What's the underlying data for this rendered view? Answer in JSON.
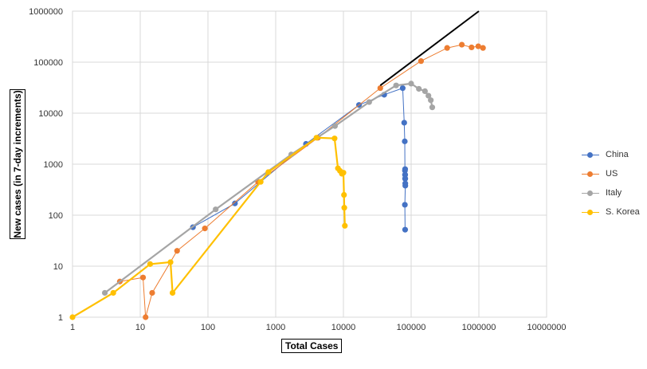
{
  "chart_data": {
    "type": "line",
    "xlabel": "Total Cases",
    "ylabel": "New cases (in 7-day increments)",
    "xscale": "log",
    "yscale": "log",
    "xlim": [
      1,
      10000000
    ],
    "ylim": [
      1,
      1000000
    ],
    "x_tick_labels": [
      "1",
      "10",
      "100",
      "1000",
      "10000",
      "100000",
      "1000000",
      "10000000"
    ],
    "y_tick_labels": [
      "1",
      "10",
      "100",
      "1000",
      "10000",
      "100000",
      "1000000"
    ],
    "grid": "major",
    "legend_position": "right",
    "series": [
      {
        "name": "China",
        "color": "#4472C4",
        "points": [
          [
            60,
            58
          ],
          [
            250,
            170
          ],
          [
            2800,
            2500
          ],
          [
            17000,
            14500
          ],
          [
            40000,
            23000
          ],
          [
            75000,
            31000
          ],
          [
            79000,
            6500
          ],
          [
            80500,
            2800
          ],
          [
            81000,
            750
          ],
          [
            81200,
            620
          ],
          [
            81400,
            520
          ],
          [
            81500,
            800
          ],
          [
            81600,
            620
          ],
          [
            81800,
            520
          ],
          [
            81900,
            420
          ],
          [
            82000,
            380
          ],
          [
            80800,
            160
          ],
          [
            81500,
            52
          ]
        ]
      },
      {
        "name": "US",
        "color": "#ED7D31",
        "points": [
          [
            5,
            5
          ],
          [
            11,
            6
          ],
          [
            12,
            1
          ],
          [
            15,
            3
          ],
          [
            35,
            20
          ],
          [
            90,
            55
          ],
          [
            550,
            450
          ],
          [
            4200,
            3300
          ],
          [
            35000,
            31000
          ],
          [
            140000,
            105000
          ],
          [
            340000,
            190000
          ],
          [
            560000,
            220000
          ],
          [
            780000,
            195000
          ],
          [
            980000,
            205000
          ],
          [
            1150000,
            190000
          ]
        ]
      },
      {
        "name": "Italy",
        "color": "#A5A5A5",
        "points": [
          [
            3,
            3
          ],
          [
            130,
            130
          ],
          [
            1700,
            1550
          ],
          [
            7500,
            5600
          ],
          [
            24000,
            16500
          ],
          [
            60000,
            35000
          ],
          [
            100000,
            38000
          ],
          [
            130000,
            30000
          ],
          [
            160000,
            27000
          ],
          [
            180000,
            22000
          ],
          [
            195000,
            18000
          ],
          [
            205000,
            13000
          ]
        ]
      },
      {
        "name": "S. Korea",
        "color": "#FFC000",
        "points": [
          [
            1,
            1
          ],
          [
            4,
            3
          ],
          [
            14,
            11
          ],
          [
            28,
            12
          ],
          [
            30,
            3
          ],
          [
            600,
            450
          ],
          [
            780,
            700
          ],
          [
            4000,
            3300
          ],
          [
            7400,
            3200
          ],
          [
            8300,
            830
          ],
          [
            8900,
            740
          ],
          [
            9500,
            650
          ],
          [
            10000,
            680
          ],
          [
            10200,
            250
          ],
          [
            10300,
            140
          ],
          [
            10500,
            62
          ]
        ]
      }
    ],
    "reference_line": {
      "color": "#000000",
      "points": [
        [
          35000,
          35000
        ],
        [
          1000000,
          1000000
        ]
      ]
    }
  }
}
